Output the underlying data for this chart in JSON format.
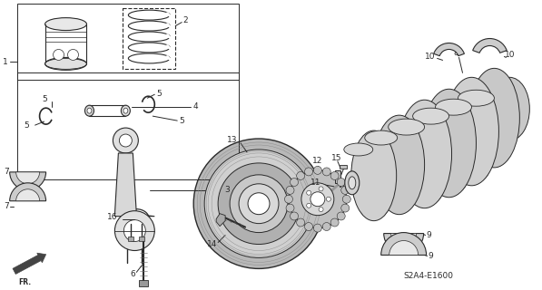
{
  "bg_color": "#ffffff",
  "line_color": "#2a2a2a",
  "diagram_code": "S2A4-E1600",
  "figsize": [
    5.97,
    3.2
  ],
  "dpi": 100
}
